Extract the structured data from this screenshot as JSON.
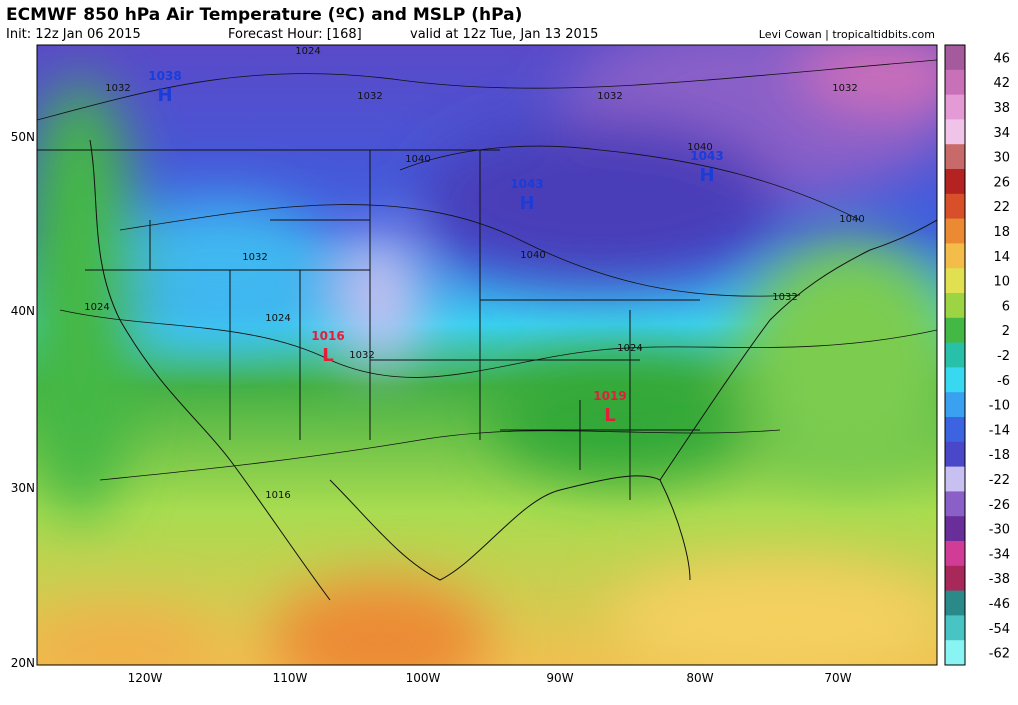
{
  "header": {
    "title": "ECMWF 850 hPa Air Temperature (ºC) and MSLP (hPa)",
    "init": "Init: 12z Jan 06 2015",
    "forecast_hour": "Forecast Hour: [168]",
    "valid": "valid at 12z Tue, Jan 13 2015",
    "credit": "Levi Cowan | tropicaltidbits.com"
  },
  "map": {
    "latitude_labels": [
      "50N",
      "40N",
      "30N",
      "20N"
    ],
    "longitude_labels": [
      "120W",
      "110W",
      "100W",
      "90W",
      "80W",
      "70W"
    ],
    "pressure_centers": [
      {
        "letter": "H",
        "value": "1038"
      },
      {
        "letter": "H",
        "value": "1043"
      },
      {
        "letter": "H",
        "value": "1043"
      },
      {
        "letter": "L",
        "value": "1016"
      },
      {
        "letter": "L",
        "value": "1019"
      }
    ],
    "isobar_labels": [
      "1024",
      "1032",
      "1032",
      "1032",
      "1032",
      "1040",
      "1040",
      "1040",
      "1040",
      "1032",
      "1024",
      "1024",
      "1032",
      "1032",
      "1024",
      "1016"
    ]
  },
  "colorbar": {
    "labels": [
      46,
      42,
      38,
      34,
      30,
      26,
      22,
      18,
      14,
      10,
      6,
      2,
      -2,
      -6,
      -10,
      -14,
      -18,
      -22,
      -26,
      -30,
      -34,
      -38,
      -46,
      -54,
      -62
    ],
    "colors": [
      "#a45a9c",
      "#c870b8",
      "#e49ad4",
      "#f0c4e8",
      "#c86a6a",
      "#b42222",
      "#d8502a",
      "#ec8a34",
      "#f4bc48",
      "#e0e050",
      "#9cd444",
      "#44b844",
      "#28c0a8",
      "#38d8f0",
      "#3aa0f0",
      "#3c64e0",
      "#4a48c8",
      "#c8c0f0",
      "#8a60c8",
      "#6a2e9a",
      "#d03c96",
      "#a8285a",
      "#2a8a8a",
      "#48c4c4",
      "#8af4f4"
    ]
  }
}
